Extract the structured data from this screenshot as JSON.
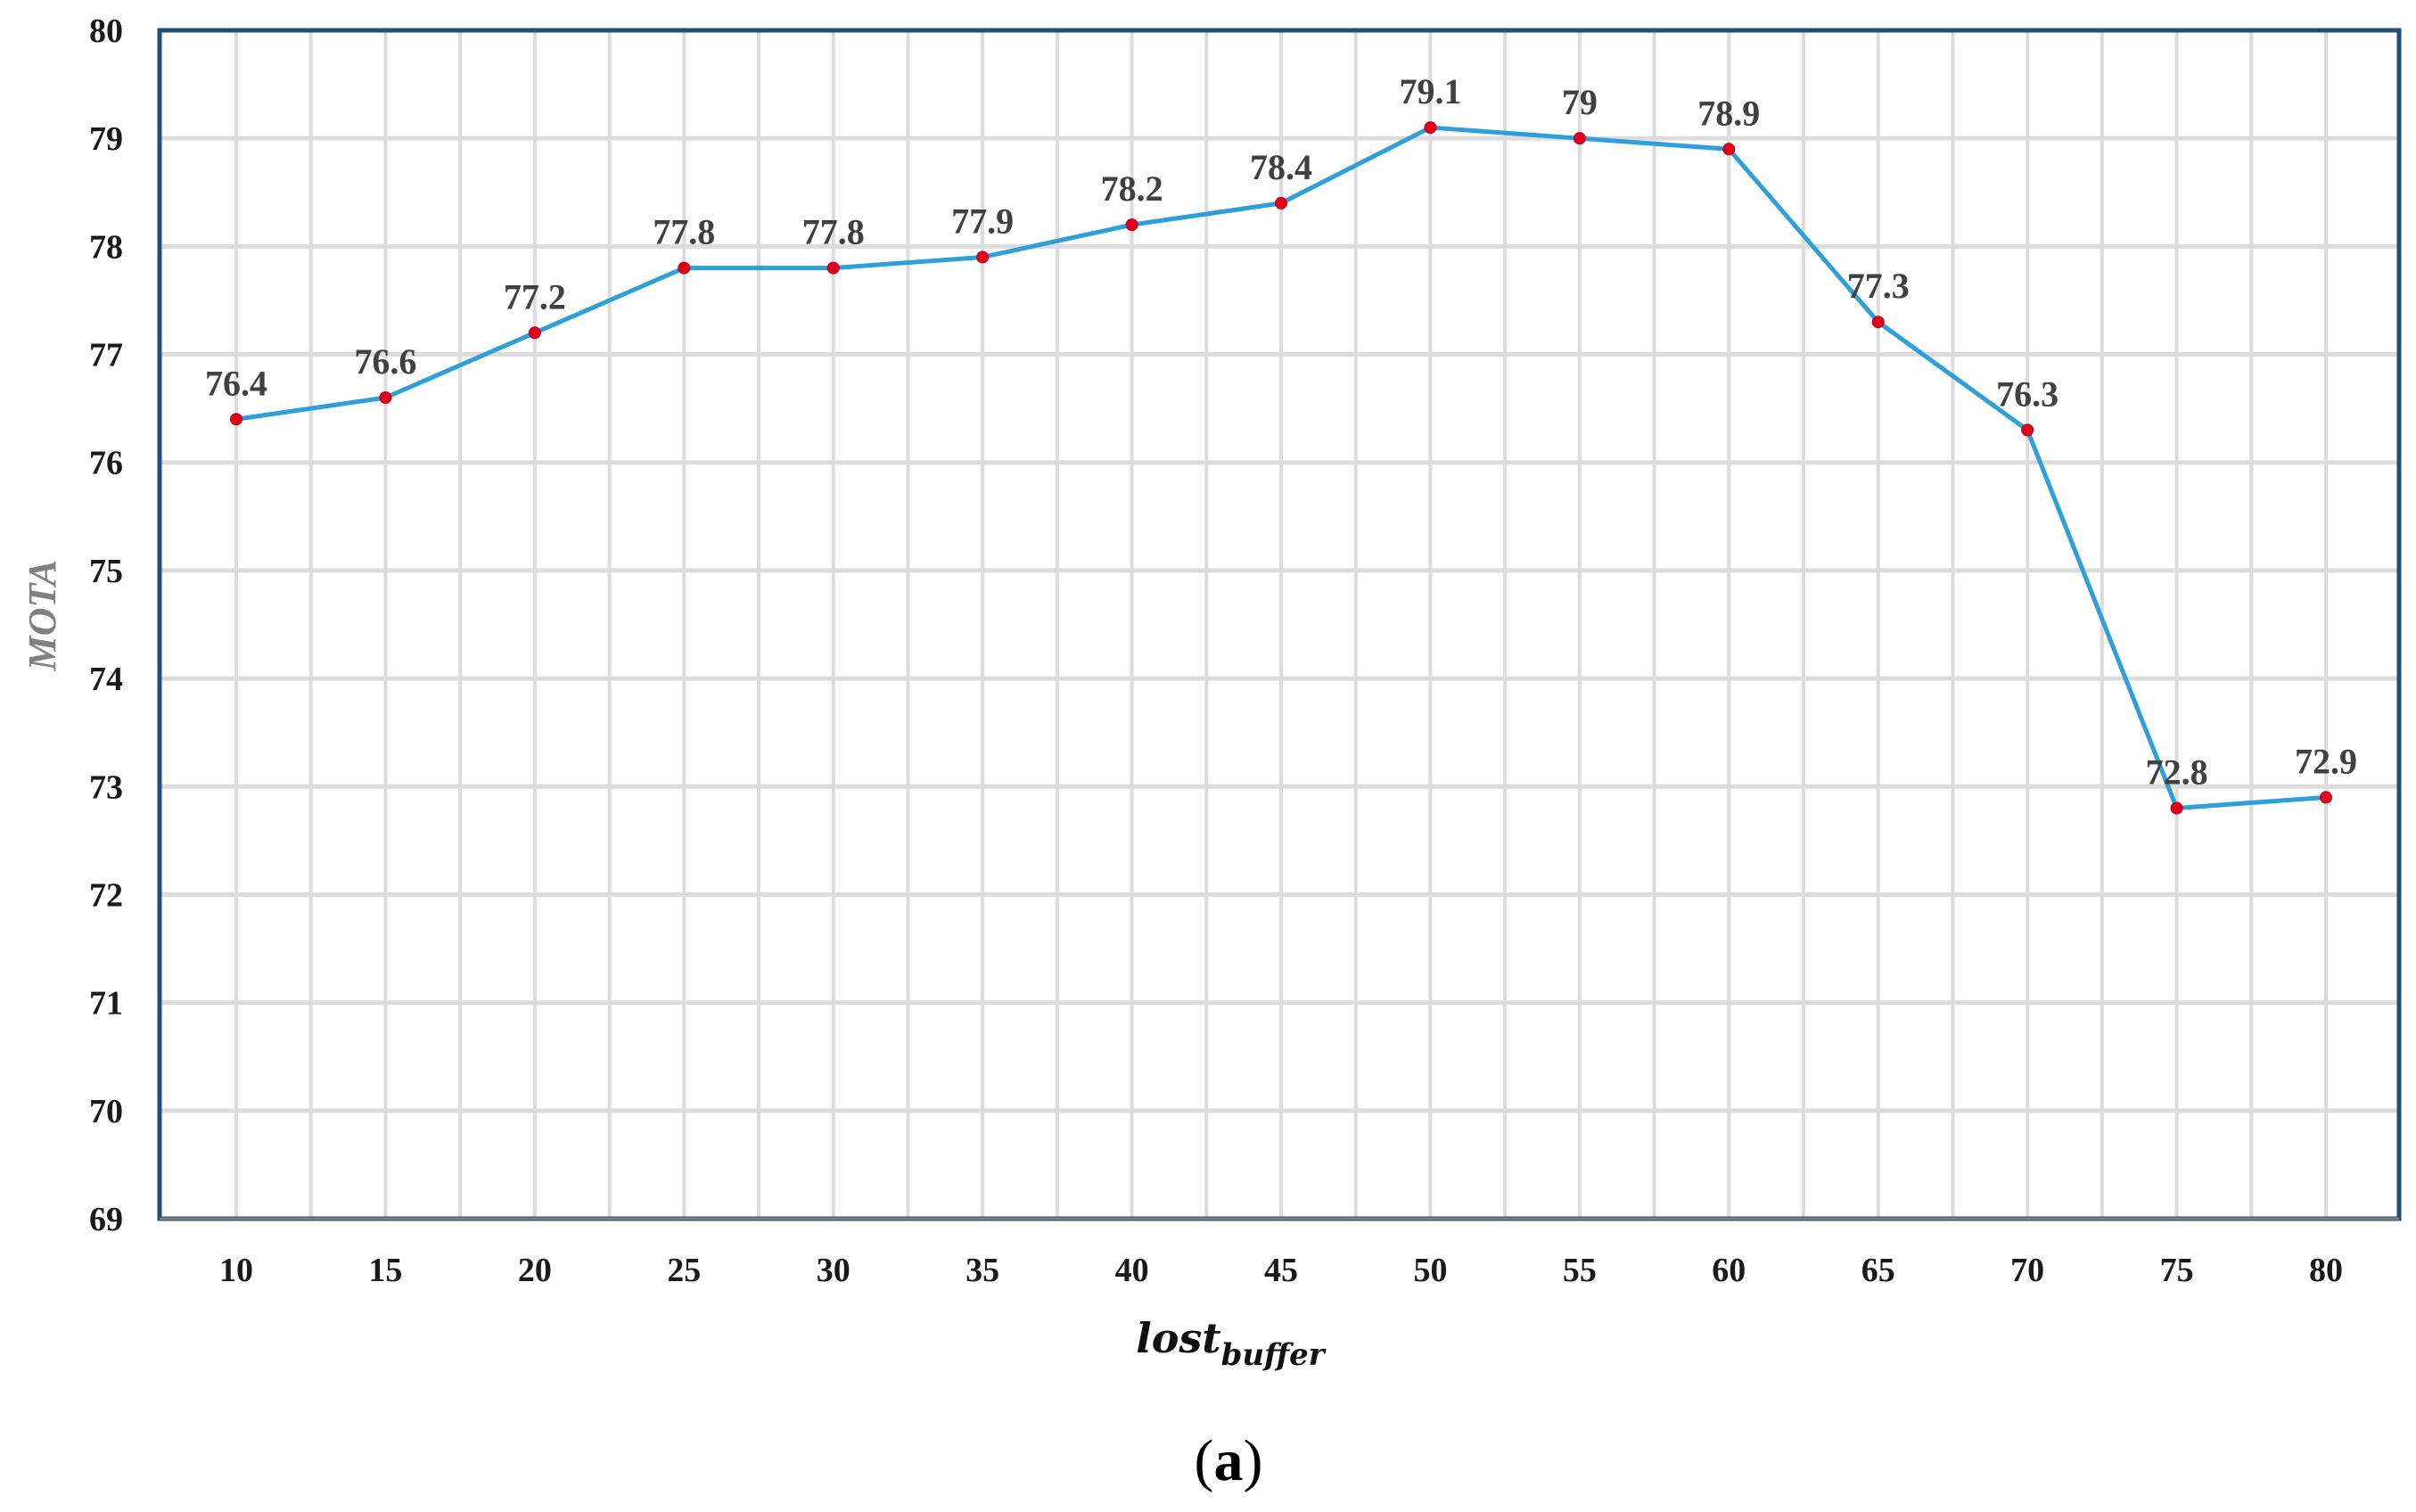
{
  "chart_data": {
    "type": "line",
    "title": "",
    "xlabel": "lost",
    "xlabel_subscript": "buffer",
    "ylabel": "MOTA",
    "caption_open": "(",
    "caption_letter": "a",
    "caption_close": ")",
    "categories": [
      "10",
      "15",
      "20",
      "25",
      "30",
      "35",
      "40",
      "45",
      "50",
      "55",
      "60",
      "65",
      "70",
      "75",
      "80"
    ],
    "series": [
      {
        "values": [
          76.4,
          76.6,
          77.2,
          77.8,
          77.8,
          77.9,
          78.2,
          78.4,
          79.1,
          79,
          78.9,
          77.3,
          76.3,
          72.8,
          72.9
        ],
        "data_labels": [
          "76.4",
          "76.6",
          "77.2",
          "77.8",
          "77.8",
          "77.9",
          "78.2",
          "78.4",
          "79.1",
          "79",
          "78.9",
          "77.3",
          "76.3",
          "72.8",
          "72.9"
        ]
      }
    ],
    "ylim": [
      69,
      80
    ],
    "yticks": [
      "69",
      "70",
      "71",
      "72",
      "73",
      "74",
      "75",
      "76",
      "77",
      "78",
      "79",
      "80"
    ],
    "grid": true,
    "legend": "none",
    "colors": {
      "line": "#2e9fd8",
      "marker": "#e0001b",
      "grid": "#dcdcdc",
      "frame": "#1f4e79",
      "x_axis": "#7f7f7f"
    }
  }
}
